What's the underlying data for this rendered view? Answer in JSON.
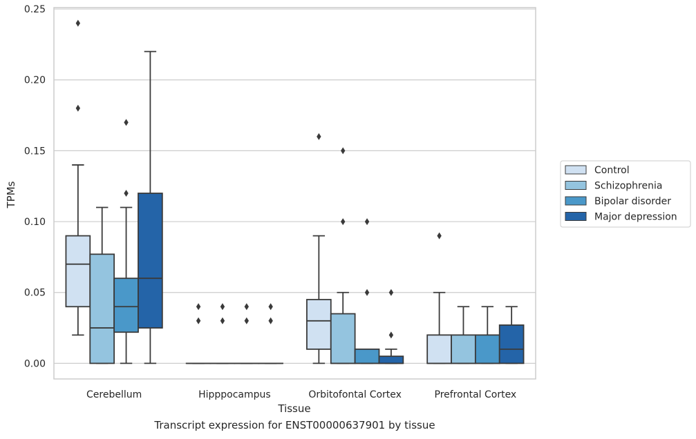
{
  "caption": "Transcript expression for ENST00000637901 by tissue",
  "chart_data": {
    "type": "boxplot",
    "xlabel": "Tissue",
    "ylabel": "TPMs",
    "ylim": [
      -0.011,
      0.251
    ],
    "yticks": [
      "0.00",
      "0.05",
      "0.10",
      "0.15",
      "0.20",
      "0.25"
    ],
    "grid": "horizontal",
    "legend_position": "right",
    "categories": [
      "Cerebellum",
      "Hipppocampus",
      "Orbitofontal Cortex",
      "Prefrontal Cortex"
    ],
    "series": [
      {
        "name": "Control",
        "color": "#d0e1f2",
        "boxes": [
          {
            "whislo": 0.02,
            "q1": 0.04,
            "med": 0.07,
            "q3": 0.09,
            "whishi": 0.14,
            "fliers": [
              0.18,
              0.24
            ]
          },
          {
            "whislo": 0.0,
            "q1": 0.0,
            "med": 0.0,
            "q3": 0.0,
            "whishi": 0.0,
            "fliers": [
              0.03,
              0.04
            ]
          },
          {
            "whislo": 0.0,
            "q1": 0.01,
            "med": 0.03,
            "q3": 0.045,
            "whishi": 0.09,
            "fliers": [
              0.16
            ]
          },
          {
            "whislo": 0.0,
            "q1": 0.0,
            "med": 0.0,
            "q3": 0.02,
            "whishi": 0.05,
            "fliers": [
              0.09
            ]
          }
        ]
      },
      {
        "name": "Schizophrenia",
        "color": "#94c4df",
        "boxes": [
          {
            "whislo": 0.0,
            "q1": 0.0,
            "med": 0.025,
            "q3": 0.077,
            "whishi": 0.11,
            "fliers": []
          },
          {
            "whislo": 0.0,
            "q1": 0.0,
            "med": 0.0,
            "q3": 0.0,
            "whishi": 0.0,
            "fliers": [
              0.03,
              0.04
            ]
          },
          {
            "whislo": 0.0,
            "q1": 0.0,
            "med": 0.0,
            "q3": 0.035,
            "whishi": 0.05,
            "fliers": [
              0.1,
              0.15
            ]
          },
          {
            "whislo": 0.0,
            "q1": 0.0,
            "med": 0.0,
            "q3": 0.02,
            "whishi": 0.04,
            "fliers": []
          }
        ]
      },
      {
        "name": "Bipolar disorder",
        "color": "#4a98c9",
        "boxes": [
          {
            "whislo": 0.0,
            "q1": 0.022,
            "med": 0.04,
            "q3": 0.06,
            "whishi": 0.11,
            "fliers": [
              0.12,
              0.17
            ]
          },
          {
            "whislo": 0.0,
            "q1": 0.0,
            "med": 0.0,
            "q3": 0.0,
            "whishi": 0.0,
            "fliers": [
              0.03,
              0.04
            ]
          },
          {
            "whislo": 0.0,
            "q1": 0.0,
            "med": 0.0,
            "q3": 0.01,
            "whishi": 0.01,
            "fliers": [
              0.05,
              0.1
            ]
          },
          {
            "whislo": 0.0,
            "q1": 0.0,
            "med": 0.0,
            "q3": 0.02,
            "whishi": 0.04,
            "fliers": []
          }
        ]
      },
      {
        "name": "Major depression",
        "color": "#2464a8",
        "boxes": [
          {
            "whislo": 0.0,
            "q1": 0.025,
            "med": 0.06,
            "q3": 0.12,
            "whishi": 0.22,
            "fliers": []
          },
          {
            "whislo": 0.0,
            "q1": 0.0,
            "med": 0.0,
            "q3": 0.0,
            "whishi": 0.0,
            "fliers": [
              0.03,
              0.04
            ]
          },
          {
            "whislo": 0.0,
            "q1": 0.0,
            "med": 0.0,
            "q3": 0.005,
            "whishi": 0.01,
            "fliers": [
              0.02,
              0.05
            ]
          },
          {
            "whislo": 0.0,
            "q1": 0.0,
            "med": 0.01,
            "q3": 0.027,
            "whishi": 0.04,
            "fliers": []
          }
        ]
      }
    ]
  }
}
